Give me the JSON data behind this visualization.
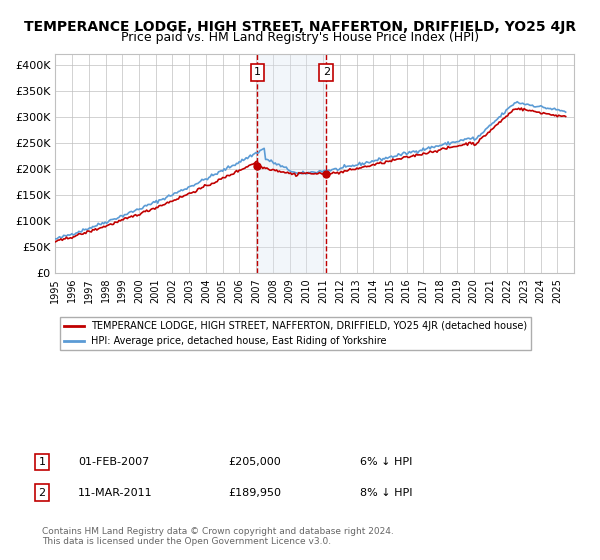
{
  "title": "TEMPERANCE LODGE, HIGH STREET, NAFFERTON, DRIFFIELD, YO25 4JR",
  "subtitle": "Price paid vs. HM Land Registry's House Price Index (HPI)",
  "hpi_legend": "HPI: Average price, detached house, East Riding of Yorkshire",
  "property_legend": "TEMPERANCE LODGE, HIGH STREET, NAFFERTON, DRIFFIELD, YO25 4JR (detached house)",
  "annotation1_date": "01-FEB-2007",
  "annotation1_price": "£205,000",
  "annotation1_hpi": "6% ↓ HPI",
  "annotation2_date": "11-MAR-2011",
  "annotation2_price": "£189,950",
  "annotation2_hpi": "8% ↓ HPI",
  "sale1_year": 2007.08,
  "sale1_value": 205000,
  "sale2_year": 2011.19,
  "sale2_value": 189950,
  "copyright_text": "Contains HM Land Registry data © Crown copyright and database right 2024.\nThis data is licensed under the Open Government Licence v3.0.",
  "ylim": [
    0,
    420000
  ],
  "yticks": [
    0,
    50000,
    100000,
    150000,
    200000,
    250000,
    300000,
    350000,
    400000
  ],
  "hpi_color": "#5b9bd5",
  "property_color": "#c00000",
  "shading_color": "#dce6f1",
  "grid_color": "#c0c0c0",
  "background_color": "#ffffff",
  "title_fontsize": 10,
  "subtitle_fontsize": 9
}
